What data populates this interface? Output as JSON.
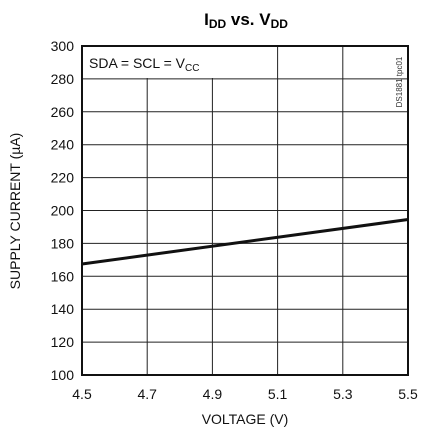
{
  "chart_data": {
    "type": "line",
    "title": {
      "main_1": "I",
      "sub_1": "DD",
      "main_2": " vs. V",
      "sub_2": "DD"
    },
    "xlabel": "VOLTAGE (V)",
    "ylabel": "SUPPLY CURRENT (µA)",
    "xlim": [
      4.5,
      5.5
    ],
    "ylim": [
      100,
      300
    ],
    "xticks": [
      "4.5",
      "4.7",
      "4.9",
      "5.1",
      "5.3",
      "5.5"
    ],
    "yticks": [
      "100",
      "120",
      "140",
      "160",
      "180",
      "200",
      "220",
      "240",
      "260",
      "280",
      "300"
    ],
    "grid": true,
    "annotation": {
      "main": "SDA = SCL = V",
      "sub": "CC"
    },
    "side_id": "DS1881 tpc01",
    "series": [
      {
        "x": [
          4.5,
          5.5
        ],
        "y": [
          167.5,
          194.5
        ]
      }
    ],
    "line_color": "#111111",
    "grid_color": "#222222"
  }
}
